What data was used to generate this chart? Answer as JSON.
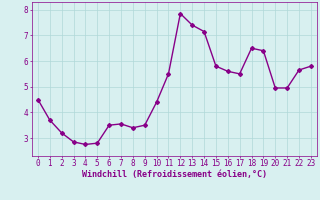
{
  "x": [
    0,
    1,
    2,
    3,
    4,
    5,
    6,
    7,
    8,
    9,
    10,
    11,
    12,
    13,
    14,
    15,
    16,
    17,
    18,
    19,
    20,
    21,
    22,
    23
  ],
  "y": [
    4.5,
    3.7,
    3.2,
    2.85,
    2.75,
    2.8,
    3.5,
    3.55,
    3.4,
    3.5,
    4.4,
    5.5,
    7.85,
    7.4,
    7.15,
    5.8,
    5.6,
    5.5,
    6.5,
    6.4,
    4.95,
    4.95,
    5.65,
    5.8
  ],
  "line_color": "#880088",
  "marker": "D",
  "marker_size": 2.0,
  "linewidth": 1.0,
  "bg_color": "#d8f0f0",
  "grid_color": "#b0d8d8",
  "xlabel": "Windchill (Refroidissement éolien,°C)",
  "xlabel_color": "#880088",
  "xlabel_fontsize": 6.0,
  "tick_color": "#880088",
  "tick_fontsize": 5.5,
  "ylim": [
    2.3,
    8.3
  ],
  "xlim": [
    -0.5,
    23.5
  ],
  "yticks": [
    3,
    4,
    5,
    6,
    7,
    8
  ],
  "xticks": [
    0,
    1,
    2,
    3,
    4,
    5,
    6,
    7,
    8,
    9,
    10,
    11,
    12,
    13,
    14,
    15,
    16,
    17,
    18,
    19,
    20,
    21,
    22,
    23
  ]
}
